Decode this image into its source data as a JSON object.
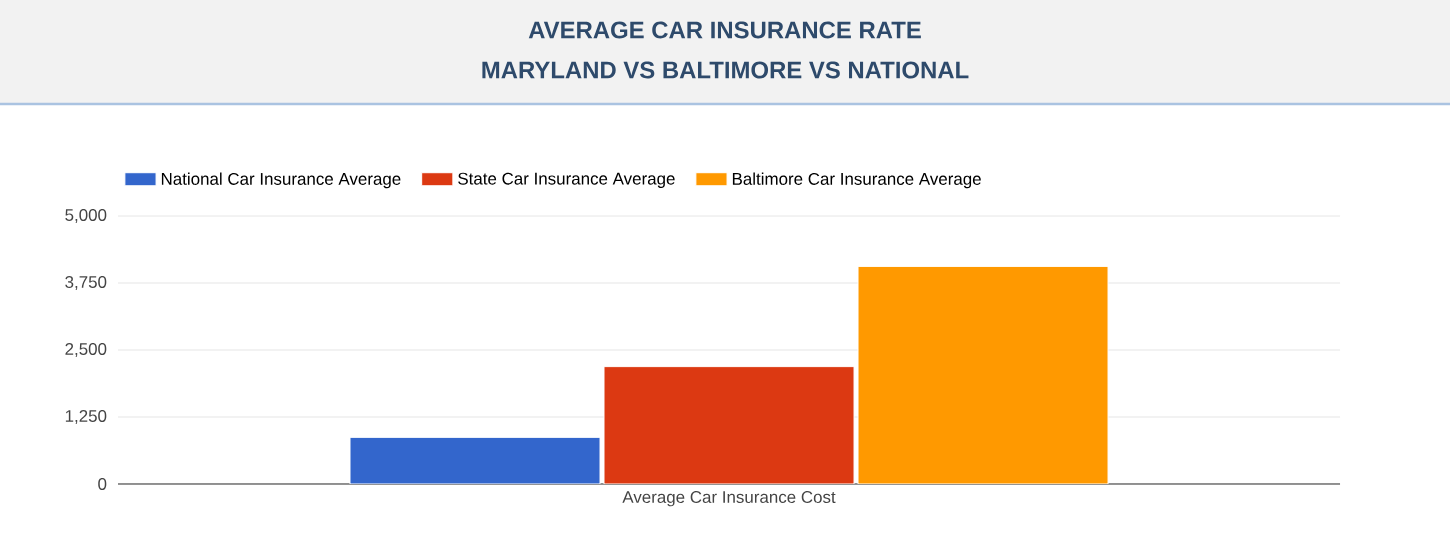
{
  "chart_data": {
    "type": "bar",
    "title": "AVERAGE CAR INSURANCE RATE",
    "subtitle": "MARYLAND VS BALTIMORE VS NATIONAL",
    "categories": [
      "Average Car Insurance Cost"
    ],
    "series": [
      {
        "name": "National Car Insurance Average",
        "color": "#3366cc",
        "values": [
          870
        ]
      },
      {
        "name": "State Car Insurance Average",
        "color": "#dc3912",
        "values": [
          2190
        ]
      },
      {
        "name": "Baltimore Car Insurance Average",
        "color": "#ff9900",
        "values": [
          4060
        ]
      }
    ],
    "ylim": [
      0,
      5000
    ],
    "yticks": [
      0,
      {
        "value": 1250,
        "label": "1,250"
      },
      {
        "value": 2500,
        "label": "2,500"
      },
      {
        "value": 3750,
        "label": "3,750"
      },
      {
        "value": 5000,
        "label": "5,000"
      }
    ],
    "grid": "y",
    "legend": "top"
  }
}
